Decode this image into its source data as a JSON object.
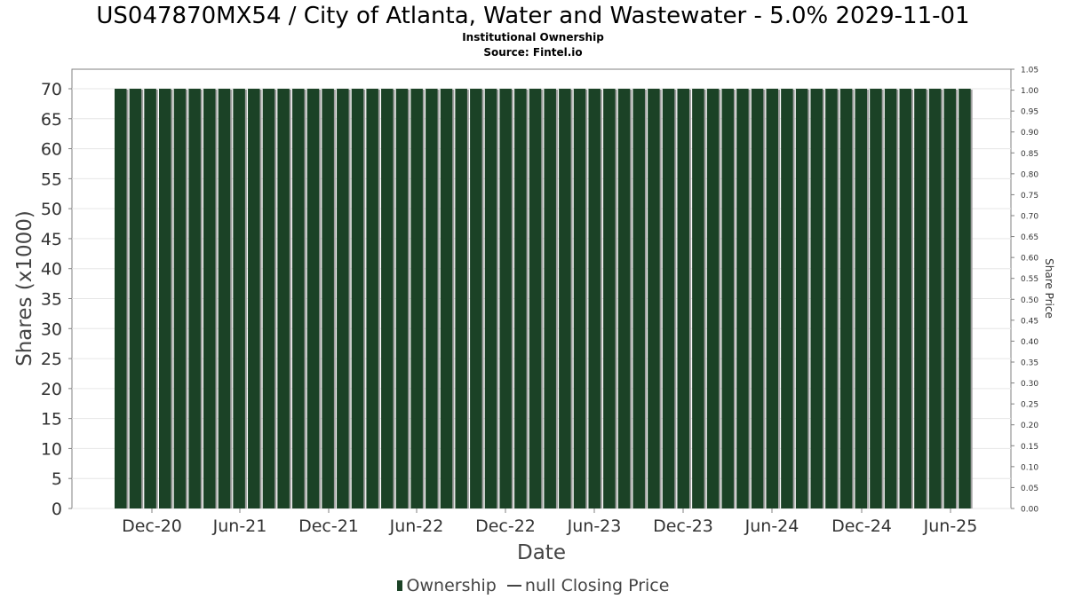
{
  "header": {
    "title": "US047870MX54 / City of Atlanta, Water and Wastewater - 5.0% 2029-11-01",
    "subtitle": "Institutional Ownership",
    "source": "Source: Fintel.io"
  },
  "legend": {
    "ownership_label": "Ownership",
    "price_label": "null Closing Price"
  },
  "colors": {
    "bar": "#1b4226",
    "bar_shadow": "#a0a0a0",
    "grid": "#e6e6e6",
    "axis": "#808080"
  },
  "chart_data": {
    "type": "bar",
    "xlabel": "Date",
    "ylabel": "Shares (x1000)",
    "y2label": "Share Price",
    "ylim": [
      0,
      70
    ],
    "yticks": [
      0,
      5,
      10,
      15,
      20,
      25,
      30,
      35,
      40,
      45,
      50,
      55,
      60,
      65,
      70
    ],
    "y2lim": [
      0,
      1.05
    ],
    "y2ticks": [
      "0.00",
      "0.05",
      "0.10",
      "0.15",
      "0.20",
      "0.25",
      "0.30",
      "0.35",
      "0.40",
      "0.45",
      "0.50",
      "0.55",
      "0.60",
      "0.65",
      "0.70",
      "0.75",
      "0.80",
      "0.85",
      "0.90",
      "0.95",
      "1.00",
      "1.05"
    ],
    "x_tick_labels": [
      "Dec-20",
      "Jun-21",
      "Dec-21",
      "Jun-22",
      "Dec-22",
      "Jun-23",
      "Dec-23",
      "Jun-24",
      "Dec-24",
      "Jun-25"
    ],
    "grid": true,
    "legend_position": "bottom",
    "series": [
      {
        "name": "Ownership",
        "values": [
          70,
          70,
          70,
          70,
          70,
          70,
          70,
          70,
          70,
          70,
          70,
          70,
          70,
          70,
          70,
          70,
          70,
          70,
          70,
          70,
          70,
          70,
          70,
          70,
          70,
          70,
          70,
          70,
          70,
          70,
          70,
          70,
          70,
          70,
          70,
          70,
          70,
          70,
          70,
          70,
          70,
          70,
          70,
          70,
          70,
          70,
          70,
          70,
          70,
          70,
          70,
          70,
          70,
          70,
          70,
          70,
          70,
          70
        ]
      },
      {
        "name": "null Closing Price",
        "values": []
      }
    ]
  }
}
